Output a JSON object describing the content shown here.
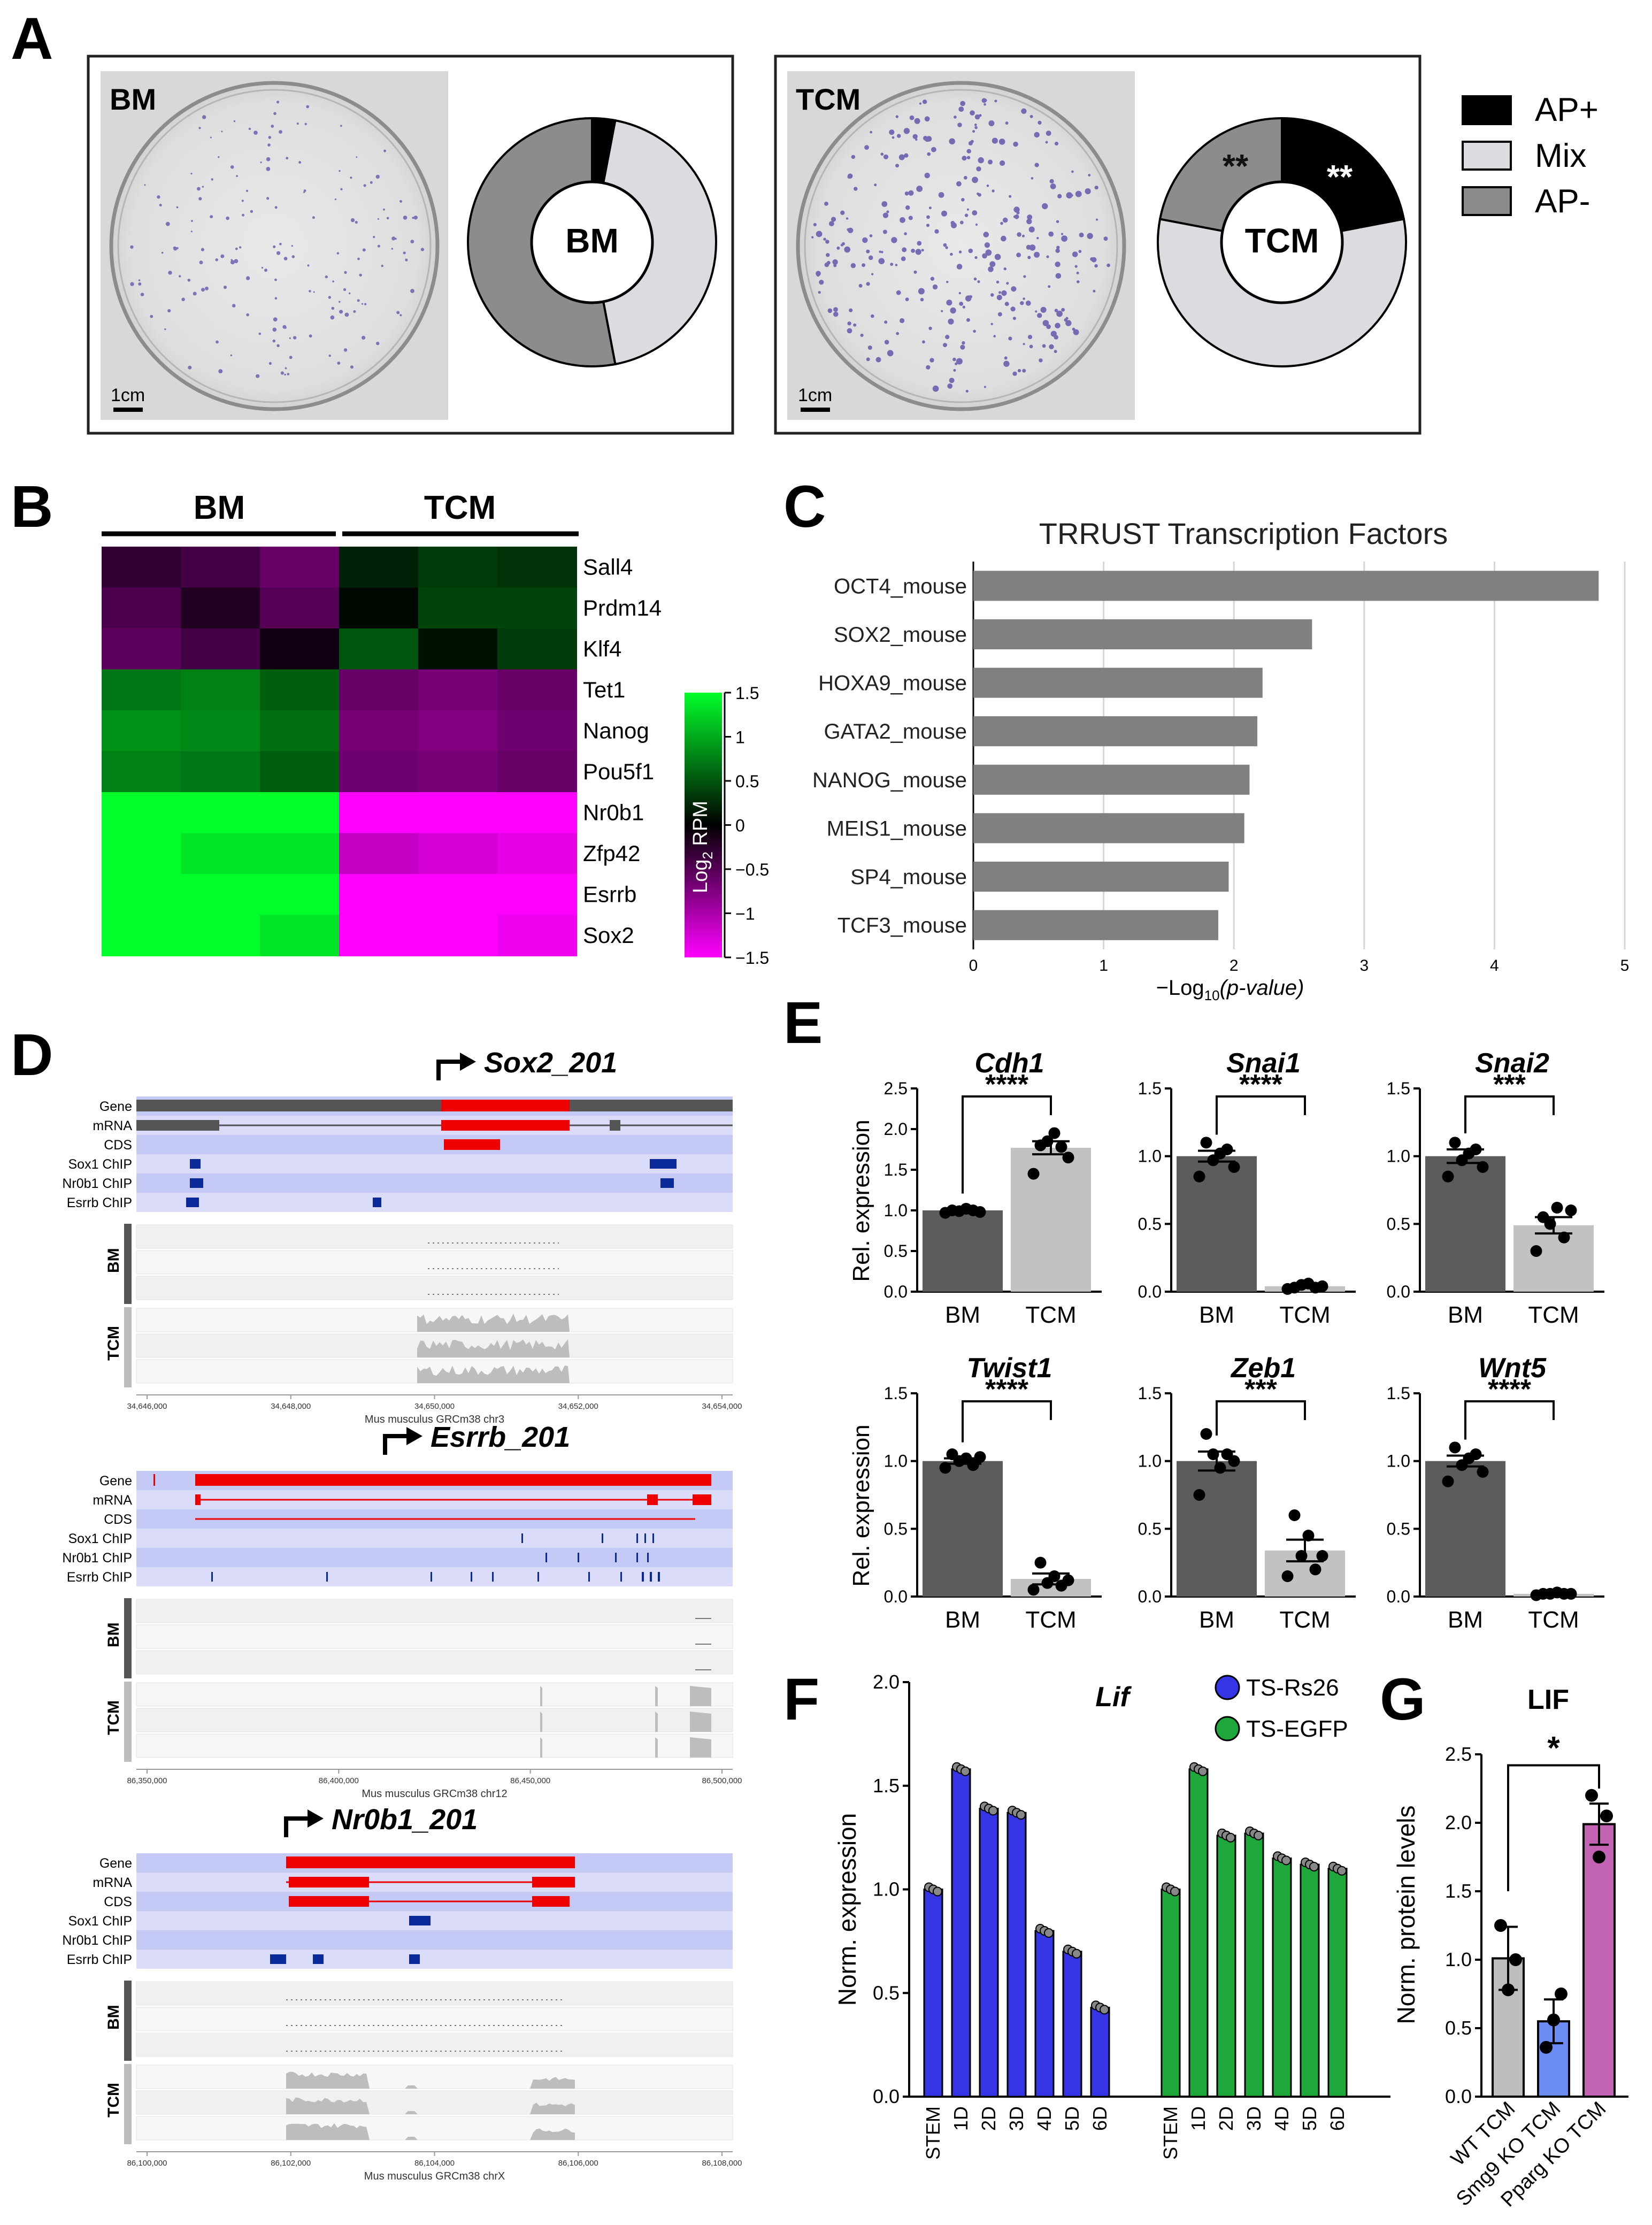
{
  "panels": {
    "A": "A",
    "B": "B",
    "C": "C",
    "D": "D",
    "E": "E",
    "F": "F",
    "G": "G"
  },
  "panelA": {
    "left_label": "BM",
    "right_label": "TCM",
    "scale_bar": "1cm",
    "donut_bm": {
      "center": "BM"
    },
    "donut_tcm": {
      "center": "TCM",
      "sig_ap_pos": "**",
      "sig_ap_neg": "**"
    },
    "legend": [
      {
        "label": "AP+",
        "color": "#000000"
      },
      {
        "label": "Mix",
        "color": "#dcdce0"
      },
      {
        "label": "AP-",
        "color": "#8c8c8c"
      }
    ]
  },
  "panelB": {
    "groups": [
      "BM",
      "TCM"
    ],
    "genes": [
      "Sall4",
      "Prdm14",
      "Klf4",
      "Tet1",
      "Nanog",
      "Pou5f1",
      "Nr0b1",
      "Zfp42",
      "Esrrb",
      "Sox2"
    ],
    "values": [
      [
        -0.3,
        -0.4,
        -0.6,
        0.2,
        0.35,
        0.3
      ],
      [
        -0.45,
        -0.2,
        -0.5,
        0.05,
        0.4,
        0.4
      ],
      [
        -0.55,
        -0.4,
        -0.1,
        0.5,
        0.1,
        0.35
      ],
      [
        0.7,
        0.75,
        0.55,
        -0.6,
        -0.7,
        -0.6
      ],
      [
        0.85,
        0.8,
        0.65,
        -0.7,
        -0.75,
        -0.65
      ],
      [
        0.75,
        0.7,
        0.55,
        -0.65,
        -0.7,
        -0.6
      ],
      [
        1.5,
        1.5,
        1.5,
        -1.5,
        -1.5,
        -1.5
      ],
      [
        1.5,
        1.35,
        1.35,
        -1.15,
        -1.25,
        -1.35
      ],
      [
        1.5,
        1.5,
        1.5,
        -1.5,
        -1.5,
        -1.5
      ],
      [
        1.5,
        1.5,
        1.35,
        -1.5,
        -1.5,
        -1.4
      ]
    ],
    "colorbar": {
      "label": "Log",
      "label_sub": "2",
      "label_tail": " RPM",
      "ticks": [
        "1.5",
        "1",
        "0.5",
        "0",
        "−0.5",
        "−1",
        "−1.5"
      ],
      "tick_values": [
        1.5,
        1,
        0.5,
        0,
        -0.5,
        -1,
        -1.5
      ]
    }
  },
  "chart_data": [
    {
      "type": "bar",
      "id": "C",
      "title": "TRRUST Transcription Factors",
      "categories": [
        "OCT4_mouse",
        "SOX2_mouse",
        "HOXA9_mouse",
        "GATA2_mouse",
        "NANOG_mouse",
        "MEIS1_mouse",
        "SP4_mouse",
        "TCF3_mouse"
      ],
      "values": [
        4.8,
        2.6,
        2.22,
        2.18,
        2.12,
        2.08,
        1.96,
        1.88
      ],
      "xlabel": "−Log",
      "xlabel_sub": "10",
      "xlabel_tail": "(p-value)",
      "xlim": [
        0,
        5
      ],
      "xticks": [
        "0",
        "1",
        "2",
        "3",
        "4",
        "5"
      ],
      "orientation": "horizontal"
    },
    {
      "type": "bar",
      "id": "E",
      "ylabel": "Rel. expression",
      "categories": [
        "BM",
        "TCM"
      ],
      "subplots": [
        {
          "title": "Cdh1",
          "values": [
            1.0,
            1.77
          ],
          "ymax": 2.5,
          "yticks": [
            "0.0",
            "0.5",
            "1.0",
            "1.5",
            "2.0",
            "2.5"
          ],
          "sig": "****",
          "points": [
            [
              0.97,
              1.0,
              0.99,
              1.02,
              1.0,
              0.98
            ],
            [
              1.45,
              1.8,
              1.85,
              1.95,
              1.78,
              1.65
            ]
          ],
          "sem": [
            0.01,
            0.08
          ]
        },
        {
          "title": "Snai1",
          "values": [
            1.0,
            0.04
          ],
          "ymax": 1.5,
          "yticks": [
            "0.0",
            "0.5",
            "1.0",
            "1.5"
          ],
          "sig": "****",
          "points": [
            [
              0.85,
              1.1,
              0.97,
              1.02,
              1.05,
              0.92
            ],
            [
              0.02,
              0.03,
              0.05,
              0.06,
              0.03,
              0.04
            ]
          ],
          "sem": [
            0.04,
            0.01
          ]
        },
        {
          "title": "Snai2",
          "values": [
            1.0,
            0.49
          ],
          "ymax": 1.5,
          "yticks": [
            "0.0",
            "0.5",
            "1.0",
            "1.5"
          ],
          "sig": "***",
          "points": [
            [
              0.85,
              1.1,
              0.97,
              1.02,
              1.05,
              0.92
            ],
            [
              0.3,
              0.55,
              0.5,
              0.62,
              0.4,
              0.6
            ]
          ],
          "sem": [
            0.05,
            0.06
          ]
        },
        {
          "title": "Twist1",
          "values": [
            1.0,
            0.13
          ],
          "ymax": 1.5,
          "yticks": [
            "0.0",
            "0.5",
            "1.0",
            "1.5"
          ],
          "sig": "****",
          "points": [
            [
              0.95,
              1.05,
              1.0,
              1.02,
              0.97,
              1.03
            ],
            [
              0.05,
              0.25,
              0.1,
              0.15,
              0.08,
              0.12
            ]
          ],
          "sem": [
            0.02,
            0.04
          ]
        },
        {
          "title": "Zeb1",
          "values": [
            1.0,
            0.34
          ],
          "ymax": 1.5,
          "yticks": [
            "0.0",
            "0.5",
            "1.0",
            "1.5"
          ],
          "sig": "***",
          "points": [
            [
              0.75,
              1.2,
              1.05,
              0.95,
              1.05,
              1.0
            ],
            [
              0.15,
              0.6,
              0.3,
              0.45,
              0.2,
              0.3
            ]
          ],
          "sem": [
            0.07,
            0.08
          ]
        },
        {
          "title": "Wnt5",
          "values": [
            1.0,
            0.02
          ],
          "ymax": 1.5,
          "yticks": [
            "0.0",
            "0.5",
            "1.0",
            "1.5"
          ],
          "sig": "****",
          "points": [
            [
              0.85,
              1.1,
              0.97,
              1.02,
              1.05,
              0.92
            ],
            [
              0.01,
              0.02,
              0.02,
              0.03,
              0.02,
              0.02
            ]
          ],
          "sem": [
            0.04,
            0.005
          ]
        }
      ]
    },
    {
      "type": "bar",
      "id": "F",
      "title": "Lif",
      "ylabel": "Norm. expression",
      "yticks": [
        "0.0",
        "0.5",
        "1.0",
        "1.5",
        "2.0"
      ],
      "ylim": [
        0,
        2.0
      ],
      "categories": [
        "STEM",
        "1D",
        "2D",
        "3D",
        "4D",
        "5D",
        "6D"
      ],
      "series": [
        {
          "name": "TS-Rs26",
          "color": "#3535e6",
          "values": [
            1.0,
            1.58,
            1.39,
            1.37,
            0.8,
            0.7,
            0.43
          ]
        },
        {
          "name": "TS-EGFP",
          "color": "#1ea83b",
          "values": [
            1.0,
            1.58,
            1.26,
            1.27,
            1.15,
            1.12,
            1.1
          ]
        }
      ]
    },
    {
      "type": "bar",
      "id": "G",
      "title": "LIF",
      "ylabel": "Norm. protein levels",
      "yticks": [
        "0.0",
        "0.5",
        "1.0",
        "1.5",
        "2.0",
        "2.5"
      ],
      "ylim": [
        0,
        2.5
      ],
      "categories": [
        "WT TCM",
        "Smg9 KO TCM",
        "Pparg KO TCM"
      ],
      "values": [
        1.01,
        0.55,
        1.99
      ],
      "sem": [
        0.23,
        0.16,
        0.15
      ],
      "colors": [
        "#bdbdbd",
        "#6b8bf5",
        "#c264b3"
      ],
      "points": [
        [
          1.25,
          0.78,
          1.0
        ],
        [
          0.36,
          0.56,
          0.75
        ],
        [
          2.2,
          1.75,
          2.05
        ]
      ],
      "sig": "*"
    }
  ],
  "panelD": {
    "tracks_labels": [
      "Gene",
      "mRNA",
      "CDS",
      "Sox1 ChIP",
      "Nr0b1 ChIP",
      "Esrrb ChIP"
    ],
    "group_labels": [
      "BM",
      "TCM"
    ],
    "loci": [
      {
        "name": "Sox2_201",
        "coords": [
          "34,646,000",
          "34,648,000",
          "34,650,000",
          "34,652,000",
          "34,654,000"
        ],
        "assembly": "Mus musculus GRCm38 chr3"
      },
      {
        "name": "Esrrb_201",
        "coords": [
          "86,350,000",
          "86,400,000",
          "86,450,000",
          "86,500,000"
        ],
        "assembly": "Mus musculus GRCm38 chr12"
      },
      {
        "name": "Nr0b1_201",
        "coords": [
          "86,100,000",
          "86,102,000",
          "86,104,000",
          "86,106,000",
          "86,108,000"
        ],
        "assembly": "Mus musculus GRCm38 chrX"
      }
    ]
  }
}
